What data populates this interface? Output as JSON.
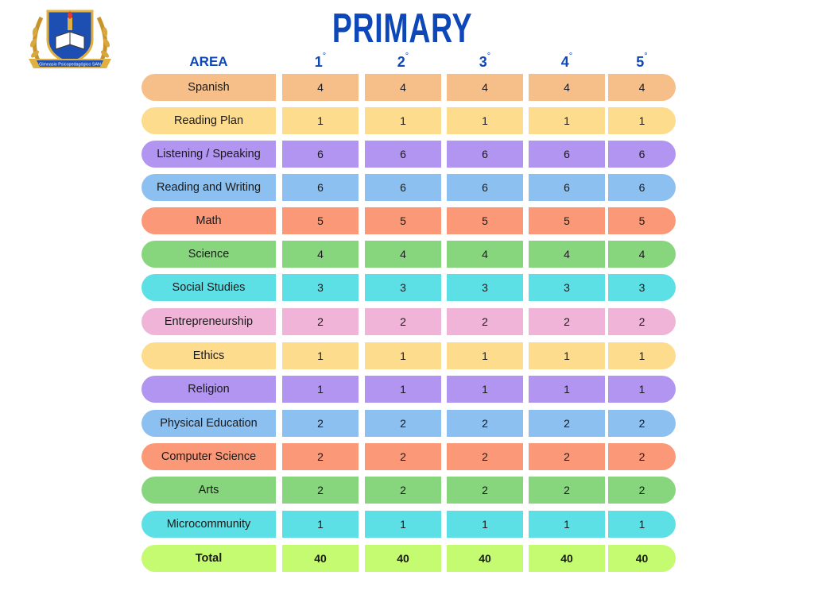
{
  "title": "PRIMARY",
  "logo": {
    "name": "school-crest",
    "text": "Gimnasio Psicopedagógico SAN"
  },
  "header": {
    "area": "AREA",
    "grades": [
      "1",
      "2",
      "3",
      "4",
      "5"
    ],
    "degree_symbol": "°"
  },
  "colors": {
    "title": "#0d47b8",
    "orange": "#f6be88",
    "yellow": "#fedc8e",
    "purple": "#b295f0",
    "blue": "#8cc0f1",
    "red": "#fb9878",
    "green": "#87d67e",
    "cyan": "#5ce0e5",
    "pink": "#efb4d8",
    "lime": "#c4fb71"
  },
  "rows": [
    {
      "area": "Spanish",
      "color": "#f6be88",
      "values": [
        "4",
        "4",
        "4",
        "4",
        "4"
      ]
    },
    {
      "area": "Reading Plan",
      "color": "#fedc8e",
      "values": [
        "1",
        "1",
        "1",
        "1",
        "1"
      ]
    },
    {
      "area": "Listening / Speaking",
      "color": "#b295f0",
      "values": [
        "6",
        "6",
        "6",
        "6",
        "6"
      ]
    },
    {
      "area": "Reading and Writing",
      "color": "#8cc0f1",
      "values": [
        "6",
        "6",
        "6",
        "6",
        "6"
      ]
    },
    {
      "area": "Math",
      "color": "#fb9878",
      "values": [
        "5",
        "5",
        "5",
        "5",
        "5"
      ]
    },
    {
      "area": "Science",
      "color": "#87d67e",
      "values": [
        "4",
        "4",
        "4",
        "4",
        "4"
      ]
    },
    {
      "area": "Social Studies",
      "color": "#5ce0e5",
      "values": [
        "3",
        "3",
        "3",
        "3",
        "3"
      ]
    },
    {
      "area": "Entrepreneurship",
      "color": "#efb4d8",
      "values": [
        "2",
        "2",
        "2",
        "2",
        "2"
      ]
    },
    {
      "area": "Ethics",
      "color": "#fedc8e",
      "values": [
        "1",
        "1",
        "1",
        "1",
        "1"
      ]
    },
    {
      "area": "Religion",
      "color": "#b295f0",
      "values": [
        "1",
        "1",
        "1",
        "1",
        "1"
      ]
    },
    {
      "area": "Physical Education",
      "color": "#8cc0f1",
      "values": [
        "2",
        "2",
        "2",
        "2",
        "2"
      ]
    },
    {
      "area": "Computer Science",
      "color": "#fb9878",
      "values": [
        "2",
        "2",
        "2",
        "2",
        "2"
      ]
    },
    {
      "area": "Arts",
      "color": "#87d67e",
      "values": [
        "2",
        "2",
        "2",
        "2",
        "2"
      ]
    },
    {
      "area": "Microcommunity",
      "color": "#5ce0e5",
      "values": [
        "1",
        "1",
        "1",
        "1",
        "1"
      ]
    },
    {
      "area": "Total",
      "color": "#c4fb71",
      "values": [
        "40",
        "40",
        "40",
        "40",
        "40"
      ],
      "total": true
    }
  ]
}
